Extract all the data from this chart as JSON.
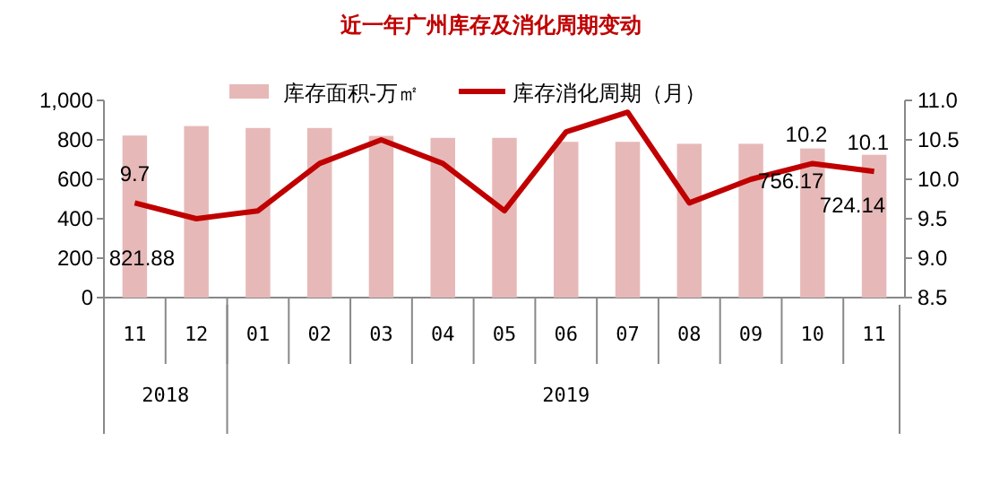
{
  "chart_data": {
    "type": "bar",
    "title": "近一年广州库存及消化周期变动",
    "categories": [
      "11",
      "12",
      "01",
      "02",
      "03",
      "04",
      "05",
      "06",
      "07",
      "08",
      "09",
      "10",
      "11"
    ],
    "series": [
      {
        "name": "库存面积-万㎡",
        "color": "#e6b9b8",
        "values": [
          821.88,
          870,
          860,
          860,
          820,
          810,
          810,
          790,
          790,
          780,
          780,
          756.17,
          724.14
        ],
        "value_labels": [
          "821.88",
          null,
          null,
          null,
          null,
          null,
          null,
          null,
          null,
          null,
          null,
          "756.17",
          "724.14"
        ]
      },
      {
        "name": "库存消化周期（月）",
        "type": "line",
        "axis": "y2",
        "color": "#c00000",
        "values": [
          9.7,
          9.5,
          9.6,
          10.2,
          10.5,
          10.2,
          9.6,
          10.6,
          10.85,
          9.7,
          10.0,
          10.2,
          10.1
        ],
        "value_labels": [
          "9.7",
          null,
          null,
          null,
          null,
          null,
          null,
          null,
          null,
          null,
          null,
          "10.2",
          "10.1"
        ]
      }
    ],
    "ylim": [
      0,
      1000
    ],
    "yticks": [
      0,
      200,
      400,
      600,
      800,
      {
        "value": 1000,
        "label": "1,000"
      }
    ],
    "y2lim": [
      8.5,
      11
    ],
    "y2ticks": [
      {
        "value": 8.5,
        "label": "8.5"
      },
      {
        "value": 9,
        "label": "9.0"
      },
      {
        "value": 9.5,
        "label": "9.5"
      },
      {
        "value": 10,
        "label": "10.0"
      },
      {
        "value": 10.5,
        "label": "10.5"
      },
      {
        "value": 11,
        "label": "11.0"
      }
    ],
    "legend": "top",
    "annotations": [
      "2018",
      "2019"
    ]
  }
}
